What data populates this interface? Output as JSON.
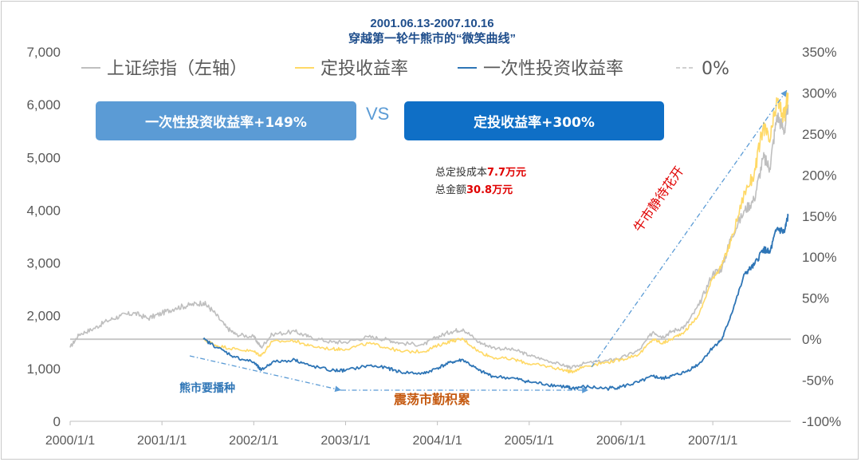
{
  "chart_data": {
    "type": "line",
    "title": "2001.06.13-2007.10.16",
    "subtitle": "穿越第一轮牛熊市的“微笑曲线”",
    "x_ticks": [
      "2000/1/1",
      "2001/1/1",
      "2002/1/1",
      "2003/1/1",
      "2004/1/1",
      "2005/1/1",
      "2006/1/1",
      "2007/1/1"
    ],
    "x_range": [
      2000.0,
      2007.85
    ],
    "y_left": {
      "ticks": [
        "0",
        "1,000",
        "2,000",
        "3,000",
        "4,000",
        "5,000",
        "6,000",
        "7,000"
      ],
      "range": [
        0,
        7000
      ]
    },
    "y_right": {
      "ticks": [
        "-100%",
        "-50%",
        "0%",
        "50%",
        "100%",
        "150%",
        "200%",
        "250%",
        "300%",
        "350%"
      ],
      "range": [
        -100,
        350
      ]
    },
    "legend": [
      {
        "label": "上证综指（左轴）",
        "color": "#bfbfbf",
        "style": "solid"
      },
      {
        "label": "定投收益率",
        "color": "#ffd966",
        "style": "solid"
      },
      {
        "label": "一次性投资收益率",
        "color": "#2e75b6",
        "style": "solid"
      },
      {
        "label": "0%",
        "color": "#d0d0d0",
        "style": "dashed"
      }
    ],
    "series": [
      {
        "name": "上证综指（左轴）",
        "axis": "left",
        "x": [
          2000.0,
          2000.1,
          2000.25,
          2000.4,
          2000.55,
          2000.7,
          2000.85,
          2001.0,
          2001.15,
          2001.3,
          2001.45,
          2001.55,
          2001.7,
          2001.8,
          2002.0,
          2002.08,
          2002.2,
          2002.45,
          2002.6,
          2002.85,
          2003.0,
          2003.25,
          2003.45,
          2003.6,
          2003.85,
          2004.0,
          2004.15,
          2004.28,
          2004.45,
          2004.6,
          2004.85,
          2005.0,
          2005.2,
          2005.4,
          2005.45,
          2005.6,
          2005.85,
          2006.0,
          2006.2,
          2006.35,
          2006.45,
          2006.55,
          2006.7,
          2006.85,
          2007.0,
          2007.1,
          2007.2,
          2007.35,
          2007.45,
          2007.55,
          2007.62,
          2007.7,
          2007.78,
          2007.82
        ],
        "values": [
          1400,
          1650,
          1750,
          1900,
          2000,
          2050,
          1950,
          2050,
          2150,
          2200,
          2250,
          2100,
          1780,
          1650,
          1600,
          1400,
          1650,
          1700,
          1600,
          1500,
          1500,
          1600,
          1550,
          1480,
          1450,
          1600,
          1700,
          1750,
          1500,
          1400,
          1350,
          1250,
          1150,
          1050,
          1010,
          1100,
          1150,
          1200,
          1350,
          1700,
          1600,
          1700,
          1800,
          2200,
          2800,
          2900,
          3500,
          4000,
          4200,
          5000,
          4800,
          5800,
          5500,
          6000
        ]
      },
      {
        "name": "定投收益率",
        "axis": "right",
        "x": [
          2001.45,
          2001.6,
          2001.8,
          2002.0,
          2002.08,
          2002.2,
          2002.45,
          2002.6,
          2002.85,
          2003.0,
          2003.25,
          2003.45,
          2003.6,
          2003.85,
          2004.0,
          2004.15,
          2004.28,
          2004.45,
          2004.6,
          2004.85,
          2005.0,
          2005.2,
          2005.4,
          2005.45,
          2005.6,
          2005.85,
          2006.0,
          2006.2,
          2006.35,
          2006.45,
          2006.55,
          2006.7,
          2006.85,
          2007.0,
          2007.1,
          2007.2,
          2007.35,
          2007.45,
          2007.55,
          2007.62,
          2007.7,
          2007.78,
          2007.82
        ],
        "values": [
          0,
          -8,
          -12,
          -15,
          -20,
          -3,
          -2,
          -8,
          -12,
          -12,
          -5,
          -10,
          -15,
          -15,
          -8,
          -2,
          0,
          -15,
          -22,
          -25,
          -30,
          -33,
          -38,
          -40,
          -33,
          -28,
          -25,
          -18,
          0,
          -5,
          0,
          10,
          30,
          75,
          90,
          120,
          180,
          200,
          260,
          240,
          290,
          270,
          300
        ]
      },
      {
        "name": "一次性投资收益率",
        "axis": "right",
        "x": [
          2001.45,
          2001.6,
          2001.8,
          2002.0,
          2002.08,
          2002.2,
          2002.45,
          2002.6,
          2002.85,
          2003.0,
          2003.25,
          2003.45,
          2003.6,
          2003.85,
          2004.0,
          2004.15,
          2004.28,
          2004.45,
          2004.6,
          2004.85,
          2005.0,
          2005.2,
          2005.4,
          2005.45,
          2005.6,
          2005.85,
          2006.0,
          2006.2,
          2006.35,
          2006.45,
          2006.55,
          2006.7,
          2006.85,
          2007.0,
          2007.1,
          2007.2,
          2007.35,
          2007.45,
          2007.55,
          2007.62,
          2007.7,
          2007.78,
          2007.82
        ],
        "values": [
          0,
          -10,
          -22,
          -28,
          -38,
          -28,
          -25,
          -32,
          -38,
          -38,
          -32,
          -35,
          -40,
          -42,
          -35,
          -28,
          -25,
          -38,
          -45,
          -48,
          -52,
          -55,
          -58,
          -60,
          -58,
          -60,
          -58,
          -52,
          -45,
          -48,
          -45,
          -40,
          -30,
          -10,
          0,
          30,
          80,
          90,
          110,
          105,
          135,
          130,
          150
        ]
      }
    ],
    "annotations": {
      "lump_sum_box": "一次性投资收益率+149%",
      "vs": "VS",
      "dca_box": "定投收益率+300%",
      "cost_label": "总定投成本",
      "cost_value": "7.7万元",
      "total_label": "总金额",
      "total_value": "30.8万元",
      "bear": "熊市要播种",
      "range": "震荡市勤积累",
      "bull": "牛市静待花开"
    }
  },
  "colors": {
    "index_line": "#bfbfbf",
    "dca_line": "#ffd966",
    "lump_line": "#2e75b6",
    "zero_line": "#c8c8c8",
    "arrow": "#5b9bd5",
    "bear_text": "#2e75b6",
    "range_text": "#c55a11",
    "bull_text": "#e00000"
  }
}
